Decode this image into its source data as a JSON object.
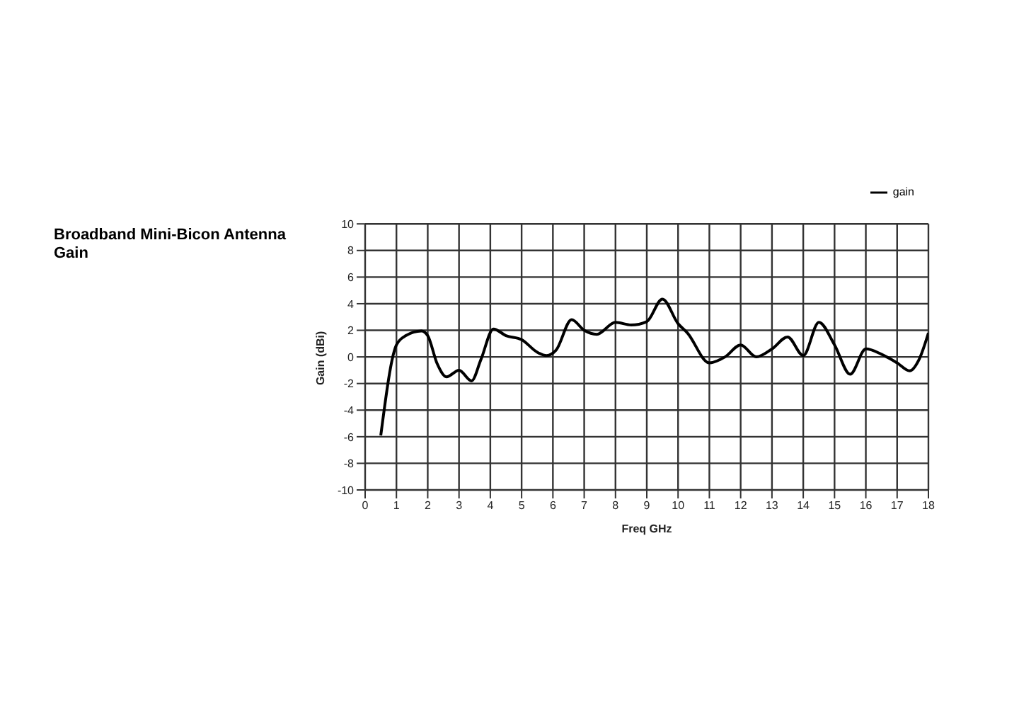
{
  "chart_data": {
    "type": "line",
    "title": "Broadband Mini-Bicon Antenna Gain",
    "xlabel": "Freq GHz",
    "ylabel": "Gain (dBi)",
    "x": [
      0.5,
      1.0,
      1.3,
      1.8,
      2.0,
      2.3,
      2.6,
      3.0,
      3.4,
      3.7,
      4.1,
      4.5,
      5.0,
      5.5,
      5.8,
      6.1,
      6.6,
      7.0,
      7.4,
      8.0,
      8.5,
      9.0,
      9.5,
      10.0,
      10.3,
      11.0,
      11.5,
      12.0,
      12.5,
      13.0,
      13.5,
      14.0,
      14.5,
      15.0,
      15.5,
      16.0,
      16.5,
      17.0,
      17.4,
      17.7,
      18.0
    ],
    "series": [
      {
        "name": "gain",
        "color": "#000000",
        "values": [
          -5.9,
          0.9,
          1.6,
          1.95,
          1.6,
          -0.5,
          -1.5,
          -1.0,
          -1.8,
          -0.2,
          2.1,
          1.6,
          1.3,
          0.35,
          0.1,
          0.5,
          2.8,
          2.0,
          1.7,
          2.6,
          2.4,
          2.65,
          4.35,
          2.5,
          1.8,
          -0.45,
          0,
          0.9,
          0,
          0.6,
          1.5,
          0.1,
          2.6,
          0.9,
          -1.3,
          0.6,
          0.2,
          -0.45,
          -1.05,
          -0.2,
          1.8
        ]
      }
    ],
    "xlim": [
      0,
      18
    ],
    "xticks": [
      0,
      1,
      2,
      3,
      4,
      5,
      6,
      7,
      8,
      9,
      10,
      11,
      12,
      13,
      14,
      15,
      16,
      17,
      18
    ],
    "ylim": [
      -10,
      10
    ],
    "yticks": [
      -10,
      -8,
      -6,
      -4,
      -2,
      0,
      2,
      4,
      6,
      8,
      10
    ],
    "grid": true,
    "legend": "top right",
    "marker": "none",
    "line_style": "solid"
  }
}
